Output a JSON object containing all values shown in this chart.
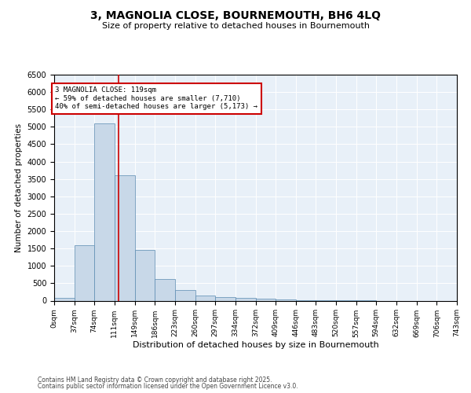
{
  "title_line1": "3, MAGNOLIA CLOSE, BOURNEMOUTH, BH6 4LQ",
  "title_line2": "Size of property relative to detached houses in Bournemouth",
  "xlabel": "Distribution of detached houses by size in Bournemouth",
  "ylabel": "Number of detached properties",
  "bin_edges": [
    0,
    37,
    74,
    111,
    149,
    186,
    223,
    260,
    297,
    334,
    372,
    409,
    446,
    483,
    520,
    557,
    594,
    632,
    669,
    706,
    743
  ],
  "bar_heights": [
    75,
    1600,
    5100,
    3600,
    1450,
    625,
    310,
    155,
    110,
    75,
    50,
    30,
    15,
    5,
    2,
    1,
    0,
    0,
    0,
    0
  ],
  "bar_color": "#c8d8e8",
  "bar_edge_color": "#5a8ab0",
  "property_size": 119,
  "vline_color": "#cc0000",
  "annotation_text": "3 MAGNOLIA CLOSE: 119sqm\n← 59% of detached houses are smaller (7,710)\n40% of semi-detached houses are larger (5,173) →",
  "annotation_box_color": "#ffffff",
  "annotation_box_edge": "#cc0000",
  "ylim": [
    0,
    6500
  ],
  "yticks": [
    0,
    500,
    1000,
    1500,
    2000,
    2500,
    3000,
    3500,
    4000,
    4500,
    5000,
    5500,
    6000,
    6500
  ],
  "background_color": "#e8f0f8",
  "footer_line1": "Contains HM Land Registry data © Crown copyright and database right 2025.",
  "footer_line2": "Contains public sector information licensed under the Open Government Licence v3.0.",
  "tick_labels": [
    "0sqm",
    "37sqm",
    "74sqm",
    "111sqm",
    "149sqm",
    "186sqm",
    "223sqm",
    "260sqm",
    "297sqm",
    "334sqm",
    "372sqm",
    "409sqm",
    "446sqm",
    "483sqm",
    "520sqm",
    "557sqm",
    "594sqm",
    "632sqm",
    "669sqm",
    "706sqm",
    "743sqm"
  ]
}
